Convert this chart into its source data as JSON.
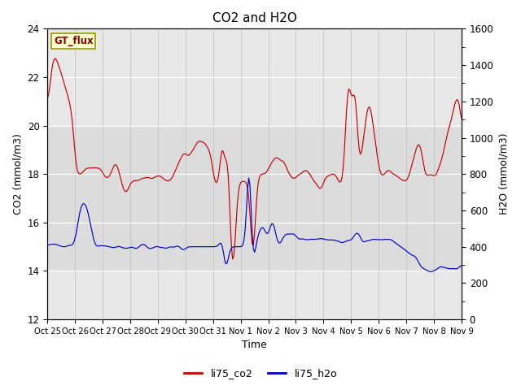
{
  "title": "CO2 and H2O",
  "xlabel": "Time",
  "ylabel_left": "CO2 (mmol/m3)",
  "ylabel_right": "H2O (mmol/m3)",
  "ylim_left": [
    12,
    24
  ],
  "ylim_right": [
    0,
    1600
  ],
  "yticks_left": [
    12,
    14,
    16,
    18,
    20,
    22,
    24
  ],
  "yticks_right": [
    0,
    200,
    400,
    600,
    800,
    1000,
    1200,
    1400,
    1600
  ],
  "color_co2": "#cc0000",
  "color_h2o": "#0000cc",
  "gt_flux_label": "GT_flux",
  "gt_flux_bg": "#ffffcc",
  "gt_flux_border": "#999900",
  "legend_co2": "li75_co2",
  "legend_h2o": "li75_h2o",
  "bg_band_color": "#dcdcdc",
  "ax_bg": "#e8e8e8",
  "fig_bg": "#ffffff"
}
